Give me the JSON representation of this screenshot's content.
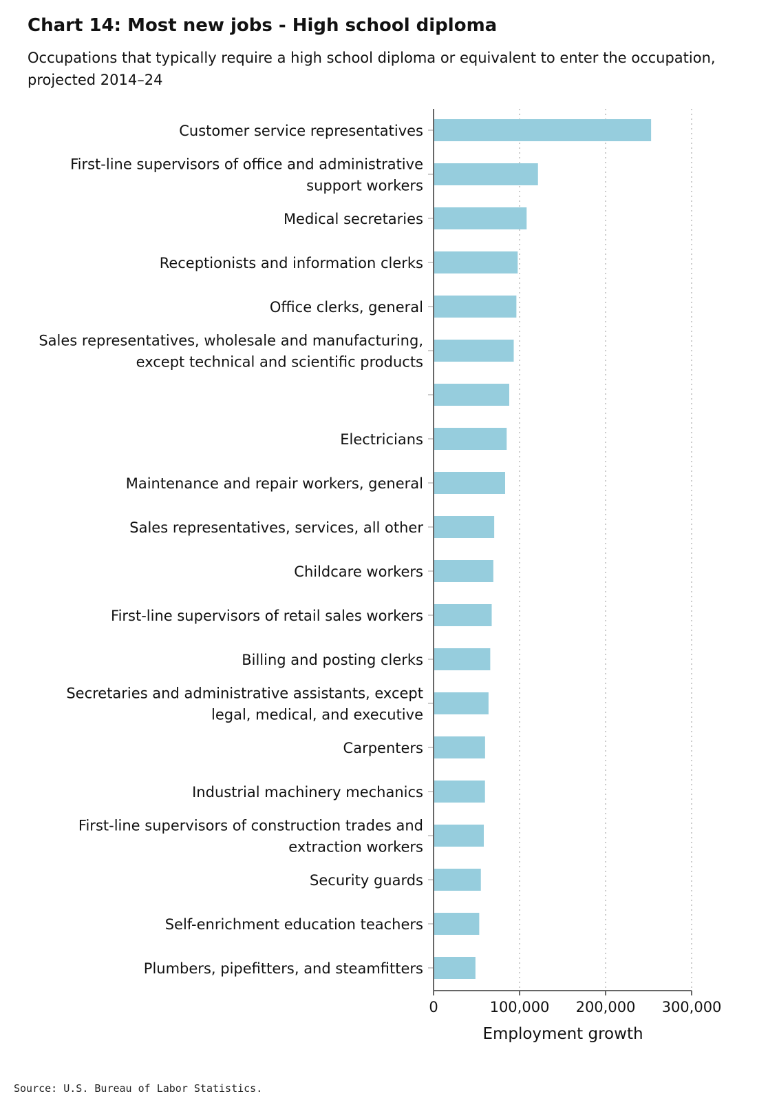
{
  "title": "Chart 14: Most new jobs - High school diploma",
  "subtitle": "Occupations that typically require a high school diploma or equivalent to enter the occupation, projected 2014–24",
  "source": "Source: U.S. Bureau of Labor Statistics.",
  "chart_data": {
    "type": "bar",
    "orientation": "horizontal",
    "categories": [
      "Customer service representatives",
      "First-line supervisors of office and administrative support workers",
      "Medical secretaries",
      "Receptionists and information clerks",
      "Office clerks, general",
      "Sales representatives, wholesale and manufacturing, except technical and scientific products",
      "",
      "Electricians",
      "Maintenance and repair workers, general",
      "Sales representatives, services, all other",
      "Childcare workers",
      "First-line supervisors of retail sales workers",
      "Billing and posting clerks",
      "Secretaries and administrative assistants, except legal, medical, and executive",
      "Carpenters",
      "Industrial machinery mechanics",
      "First-line supervisors of construction trades and extraction workers",
      "Security guards",
      "Self-enrichment education teachers",
      "Plumbers, pipefitters, and steamfitters"
    ],
    "values": [
      252900,
      121400,
      108200,
      97800,
      96300,
      93200,
      88000,
      85000,
      83200,
      70500,
      69500,
      67600,
      65900,
      63900,
      59900,
      59800,
      58400,
      55000,
      53100,
      48700
    ],
    "xlabel": "Employment growth",
    "xlim": [
      0,
      300000
    ],
    "xticks": [
      0,
      100000,
      200000,
      300000
    ],
    "xtick_labels": [
      "0",
      "100,000",
      "200,000",
      "300,000"
    ],
    "grid": "vertical dotted",
    "bar_color": "#96cddd",
    "gridline_color": "#bbbbbb",
    "axis_color": "#666666"
  }
}
